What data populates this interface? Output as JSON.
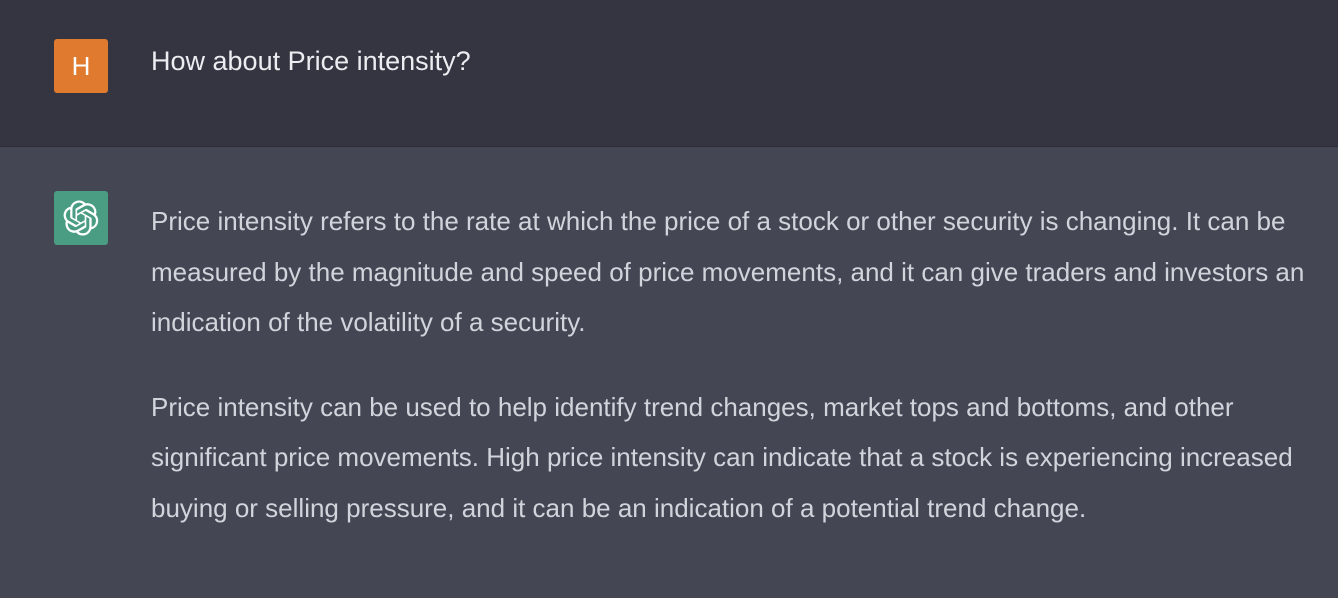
{
  "user_message": {
    "avatar_letter": "H",
    "text": "How about Price intensity?"
  },
  "assistant_message": {
    "avatar_icon": "openai-logo-icon",
    "paragraphs": [
      "Price intensity refers to the rate at which the price of a stock or other security is changing. It can be measured by the magnitude and speed of price movements, and it can give traders and investors an indication of the volatility of a security.",
      "Price intensity can be used to help identify trend changes, market tops and bottoms, and other significant price movements. High price intensity can indicate that a stock is experiencing increased buying or selling pressure, and it can be an indication of a potential trend change."
    ]
  },
  "colors": {
    "user_bg": "#343541",
    "assistant_bg": "#444654",
    "user_avatar": "#e07a2e",
    "assistant_avatar": "#4a9d82"
  }
}
